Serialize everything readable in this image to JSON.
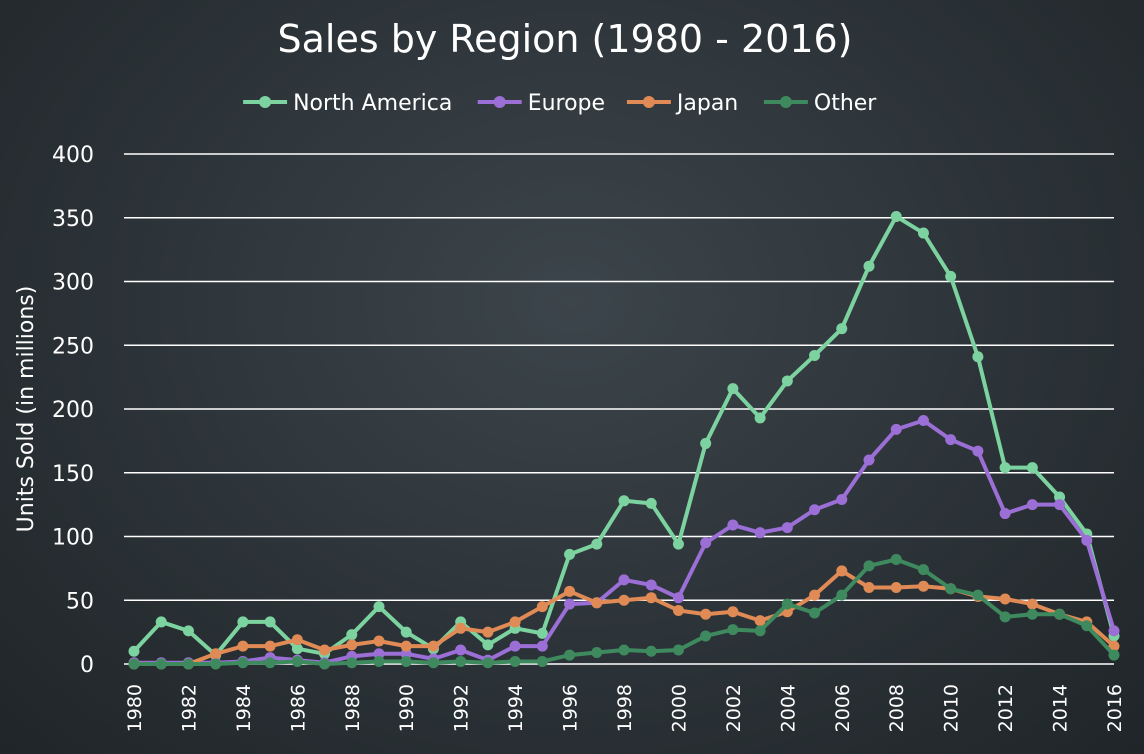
{
  "chart_data": {
    "type": "line",
    "title": "Sales by Region (1980 - 2016)",
    "xlabel": "",
    "ylabel": "Units Sold (in millions)",
    "ylim": [
      0,
      400
    ],
    "yticks": [
      0,
      50,
      100,
      150,
      200,
      250,
      300,
      350,
      400
    ],
    "grid": true,
    "legend_position": "top",
    "x": [
      1980,
      1981,
      1982,
      1983,
      1984,
      1985,
      1986,
      1987,
      1988,
      1989,
      1990,
      1991,
      1992,
      1993,
      1994,
      1995,
      1996,
      1997,
      1998,
      1999,
      2000,
      2001,
      2002,
      2003,
      2004,
      2005,
      2006,
      2007,
      2008,
      2009,
      2010,
      2011,
      2012,
      2013,
      2014,
      2015,
      2016
    ],
    "xtick_labels": [
      "1980",
      "1982",
      "1984",
      "1986",
      "1988",
      "1990",
      "1992",
      "1994",
      "1996",
      "1998",
      "2000",
      "2002",
      "2004",
      "2006",
      "2008",
      "2010",
      "2012",
      "2014",
      "2016"
    ],
    "series": [
      {
        "name": "North America",
        "color": "#7dd3a0",
        "values": [
          10,
          33,
          26,
          7,
          33,
          33,
          12,
          8,
          23,
          45,
          25,
          12,
          33,
          15,
          28,
          24,
          86,
          94,
          128,
          126,
          94,
          173,
          216,
          193,
          222,
          242,
          263,
          312,
          351,
          338,
          304,
          241,
          154,
          154,
          131,
          102,
          22
        ]
      },
      {
        "name": "Europe",
        "color": "#9b6fd6",
        "values": [
          1,
          1,
          1,
          1,
          2,
          5,
          3,
          1,
          6,
          8,
          8,
          4,
          11,
          3,
          14,
          14,
          47,
          48,
          66,
          62,
          52,
          95,
          109,
          103,
          107,
          121,
          129,
          160,
          184,
          191,
          176,
          167,
          118,
          125,
          125,
          97,
          26
        ]
      },
      {
        "name": "Japan",
        "color": "#e08a56",
        "values": [
          0,
          0,
          0,
          8,
          14,
          14,
          19,
          11,
          15,
          18,
          14,
          14,
          28,
          25,
          33,
          45,
          57,
          48,
          50,
          52,
          42,
          39,
          41,
          34,
          41,
          54,
          73,
          60,
          60,
          61,
          59,
          53,
          51,
          47,
          39,
          33,
          14
        ]
      },
      {
        "name": "Other",
        "color": "#3e8a5e",
        "values": [
          0,
          0,
          0,
          0,
          1,
          1,
          2,
          0,
          1,
          2,
          2,
          1,
          2,
          1,
          2,
          2,
          7,
          9,
          11,
          10,
          11,
          22,
          27,
          26,
          47,
          40,
          54,
          77,
          82,
          74,
          59,
          54,
          37,
          39,
          39,
          30,
          7
        ]
      }
    ]
  }
}
